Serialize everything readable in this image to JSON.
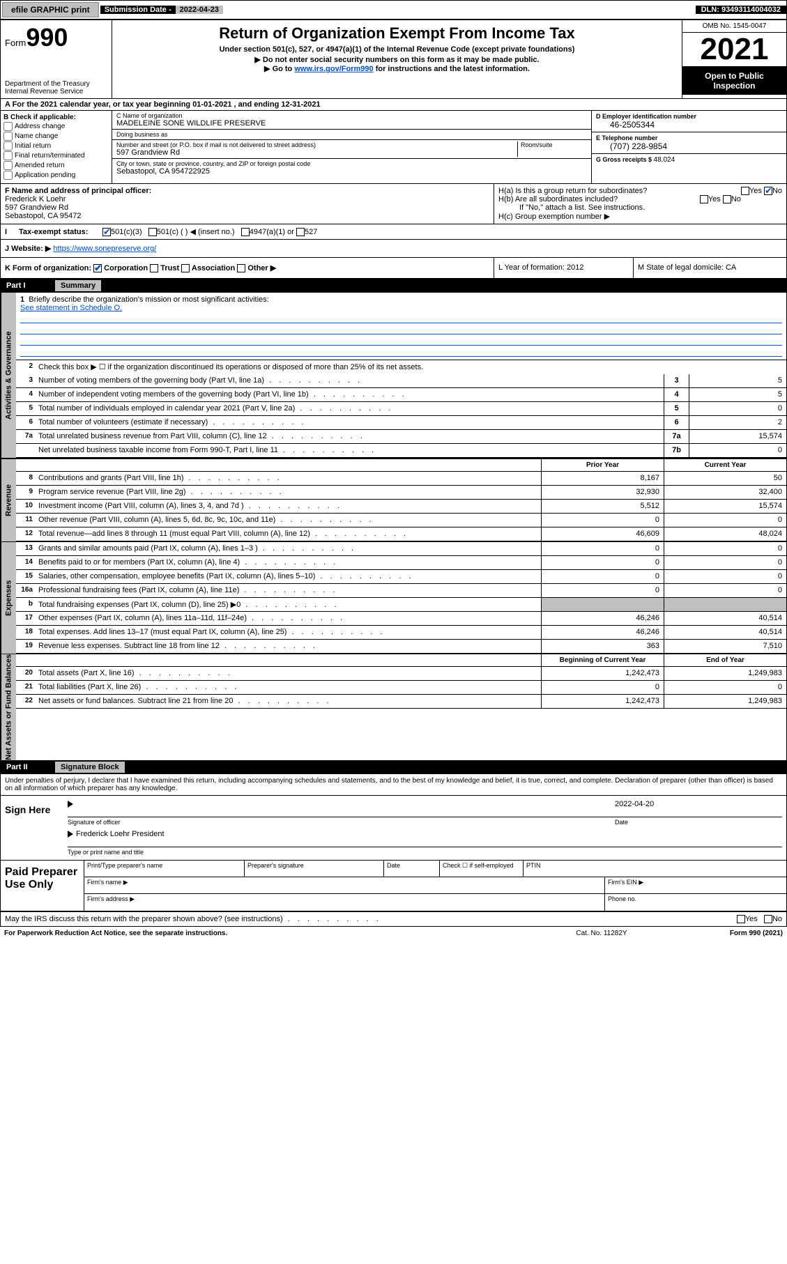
{
  "topbar": {
    "efile_btn": "efile GRAPHIC print",
    "sub_label": "Submission Date - ",
    "sub_date": "2022-04-23",
    "dln": "DLN: 93493114004032"
  },
  "header": {
    "form_word": "Form",
    "form_num": "990",
    "dept": "Department of the Treasury",
    "irs": "Internal Revenue Service",
    "title": "Return of Organization Exempt From Income Tax",
    "sub1": "Under section 501(c), 527, or 4947(a)(1) of the Internal Revenue Code (except private foundations)",
    "sub2": "▶ Do not enter social security numbers on this form as it may be made public.",
    "sub3_pre": "▶ Go to ",
    "sub3_link": "www.irs.gov/Form990",
    "sub3_post": " for instructions and the latest information.",
    "omb": "OMB No. 1545-0047",
    "year": "2021",
    "open": "Open to Public Inspection"
  },
  "row_a": "A For the 2021 calendar year, or tax year beginning 01-01-2021   , and ending 12-31-2021",
  "section_b": {
    "heading": "B Check if applicable:",
    "items": [
      "Address change",
      "Name change",
      "Initial return",
      "Final return/terminated",
      "Amended return",
      "Application pending"
    ]
  },
  "section_c": {
    "name_label": "C Name of organization",
    "name": "MADELEINE SONE WILDLIFE PRESERVE",
    "dba_label": "Doing business as",
    "dba": "",
    "addr_label": "Number and street (or P.O. box if mail is not delivered to street address)",
    "room_label": "Room/suite",
    "addr": "597 Grandview Rd",
    "city_label": "City or town, state or province, country, and ZIP or foreign postal code",
    "city": "Sebastopol, CA  954722925"
  },
  "section_d": {
    "ein_label": "D Employer identification number",
    "ein": "46-2505344",
    "phone_label": "E Telephone number",
    "phone": "(707) 228-9854",
    "gross_label": "G Gross receipts $ ",
    "gross": "48,024"
  },
  "section_f": {
    "label": "F Name and address of principal officer:",
    "name": "Frederick K Loehr",
    "addr1": "597 Grandview Rd",
    "addr2": "Sebastopol, CA  95472"
  },
  "section_h": {
    "ha": "H(a)  Is this a group return for subordinates?",
    "hb": "H(b)  Are all subordinates included?",
    "hb_note": "If \"No,\" attach a list. See instructions.",
    "hc": "H(c)  Group exemption number ▶"
  },
  "tax_status": {
    "label": "Tax-exempt status:",
    "opts": [
      "501(c)(3)",
      "501(c) (  ) ◀ (insert no.)",
      "4947(a)(1) or",
      "527"
    ]
  },
  "website": {
    "label": "J Website: ▶ ",
    "url": "https://www.sonepreserve.org/"
  },
  "k_org": {
    "label": "K Form of organization:",
    "opts": [
      "Corporation",
      "Trust",
      "Association",
      "Other ▶"
    ],
    "l": "L Year of formation: 2012",
    "m": "M State of legal domicile: CA"
  },
  "part1": {
    "num": "Part I",
    "title": "Summary"
  },
  "sidetabs": {
    "act": "Activities & Governance",
    "rev": "Revenue",
    "exp": "Expenses",
    "net": "Net Assets or Fund Balances"
  },
  "mission": {
    "num": "1",
    "label": "Briefly describe the organization's mission or most significant activities:",
    "link": "See statement in Schedule O."
  },
  "line2": {
    "num": "2",
    "label": "Check this box ▶ ☐  if the organization discontinued its operations or disposed of more than 25% of its net assets."
  },
  "gov_lines": [
    {
      "num": "3",
      "label": "Number of voting members of the governing body (Part VI, line 1a)",
      "box": "3",
      "val": "5"
    },
    {
      "num": "4",
      "label": "Number of independent voting members of the governing body (Part VI, line 1b)",
      "box": "4",
      "val": "5"
    },
    {
      "num": "5",
      "label": "Total number of individuals employed in calendar year 2021 (Part V, line 2a)",
      "box": "5",
      "val": "0"
    },
    {
      "num": "6",
      "label": "Total number of volunteers (estimate if necessary)",
      "box": "6",
      "val": "2"
    },
    {
      "num": "7a",
      "label": "Total unrelated business revenue from Part VIII, column (C), line 12",
      "box": "7a",
      "val": "15,574"
    },
    {
      "num": "",
      "label": "Net unrelated business taxable income from Form 990-T, Part I, line 11",
      "box": "7b",
      "val": "0"
    }
  ],
  "col_headers": {
    "prior": "Prior Year",
    "curr": "Current Year"
  },
  "rev_lines": [
    {
      "num": "8",
      "label": "Contributions and grants (Part VIII, line 1h)",
      "prior": "8,167",
      "curr": "50"
    },
    {
      "num": "9",
      "label": "Program service revenue (Part VIII, line 2g)",
      "prior": "32,930",
      "curr": "32,400"
    },
    {
      "num": "10",
      "label": "Investment income (Part VIII, column (A), lines 3, 4, and 7d )",
      "prior": "5,512",
      "curr": "15,574"
    },
    {
      "num": "11",
      "label": "Other revenue (Part VIII, column (A), lines 5, 6d, 8c, 9c, 10c, and 11e)",
      "prior": "0",
      "curr": "0"
    },
    {
      "num": "12",
      "label": "Total revenue—add lines 8 through 11 (must equal Part VIII, column (A), line 12)",
      "prior": "46,609",
      "curr": "48,024"
    }
  ],
  "exp_lines": [
    {
      "num": "13",
      "label": "Grants and similar amounts paid (Part IX, column (A), lines 1–3 )",
      "prior": "0",
      "curr": "0"
    },
    {
      "num": "14",
      "label": "Benefits paid to or for members (Part IX, column (A), line 4)",
      "prior": "0",
      "curr": "0"
    },
    {
      "num": "15",
      "label": "Salaries, other compensation, employee benefits (Part IX, column (A), lines 5–10)",
      "prior": "0",
      "curr": "0"
    },
    {
      "num": "16a",
      "label": "Professional fundraising fees (Part IX, column (A), line 11e)",
      "prior": "0",
      "curr": "0"
    },
    {
      "num": "b",
      "label": "Total fundraising expenses (Part IX, column (D), line 25) ▶0",
      "prior": "",
      "curr": "",
      "gray": true
    },
    {
      "num": "17",
      "label": "Other expenses (Part IX, column (A), lines 11a–11d, 11f–24e)",
      "prior": "46,246",
      "curr": "40,514"
    },
    {
      "num": "18",
      "label": "Total expenses. Add lines 13–17 (must equal Part IX, column (A), line 25)",
      "prior": "46,246",
      "curr": "40,514"
    },
    {
      "num": "19",
      "label": "Revenue less expenses. Subtract line 18 from line 12",
      "prior": "363",
      "curr": "7,510"
    }
  ],
  "net_headers": {
    "beg": "Beginning of Current Year",
    "end": "End of Year"
  },
  "net_lines": [
    {
      "num": "20",
      "label": "Total assets (Part X, line 16)",
      "prior": "1,242,473",
      "curr": "1,249,983"
    },
    {
      "num": "21",
      "label": "Total liabilities (Part X, line 26)",
      "prior": "0",
      "curr": "0"
    },
    {
      "num": "22",
      "label": "Net assets or fund balances. Subtract line 21 from line 20",
      "prior": "1,242,473",
      "curr": "1,249,983"
    }
  ],
  "part2": {
    "num": "Part II",
    "title": "Signature Block"
  },
  "penalty": "Under penalties of perjury, I declare that I have examined this return, including accompanying schedules and statements, and to the best of my knowledge and belief, it is true, correct, and complete. Declaration of preparer (other than officer) is based on all information of which preparer has any knowledge.",
  "sign": {
    "here": "Sign Here",
    "sig_label": "Signature of officer",
    "date_label": "Date",
    "date": "2022-04-20",
    "name": "Frederick Loehr President",
    "name_label": "Type or print name and title"
  },
  "preparer": {
    "title": "Paid Preparer Use Only",
    "h1": "Print/Type preparer's name",
    "h2": "Preparer's signature",
    "h3": "Date",
    "h4": "Check ☐ if self-employed",
    "h5": "PTIN",
    "firm_name": "Firm's name   ▶",
    "firm_ein": "Firm's EIN ▶",
    "firm_addr": "Firm's address ▶",
    "phone": "Phone no."
  },
  "discuss": "May the IRS discuss this return with the preparer shown above? (see instructions)",
  "footer": {
    "paperwork": "For Paperwork Reduction Act Notice, see the separate instructions.",
    "cat": "Cat. No. 11282Y",
    "form": "Form 990 (2021)"
  }
}
